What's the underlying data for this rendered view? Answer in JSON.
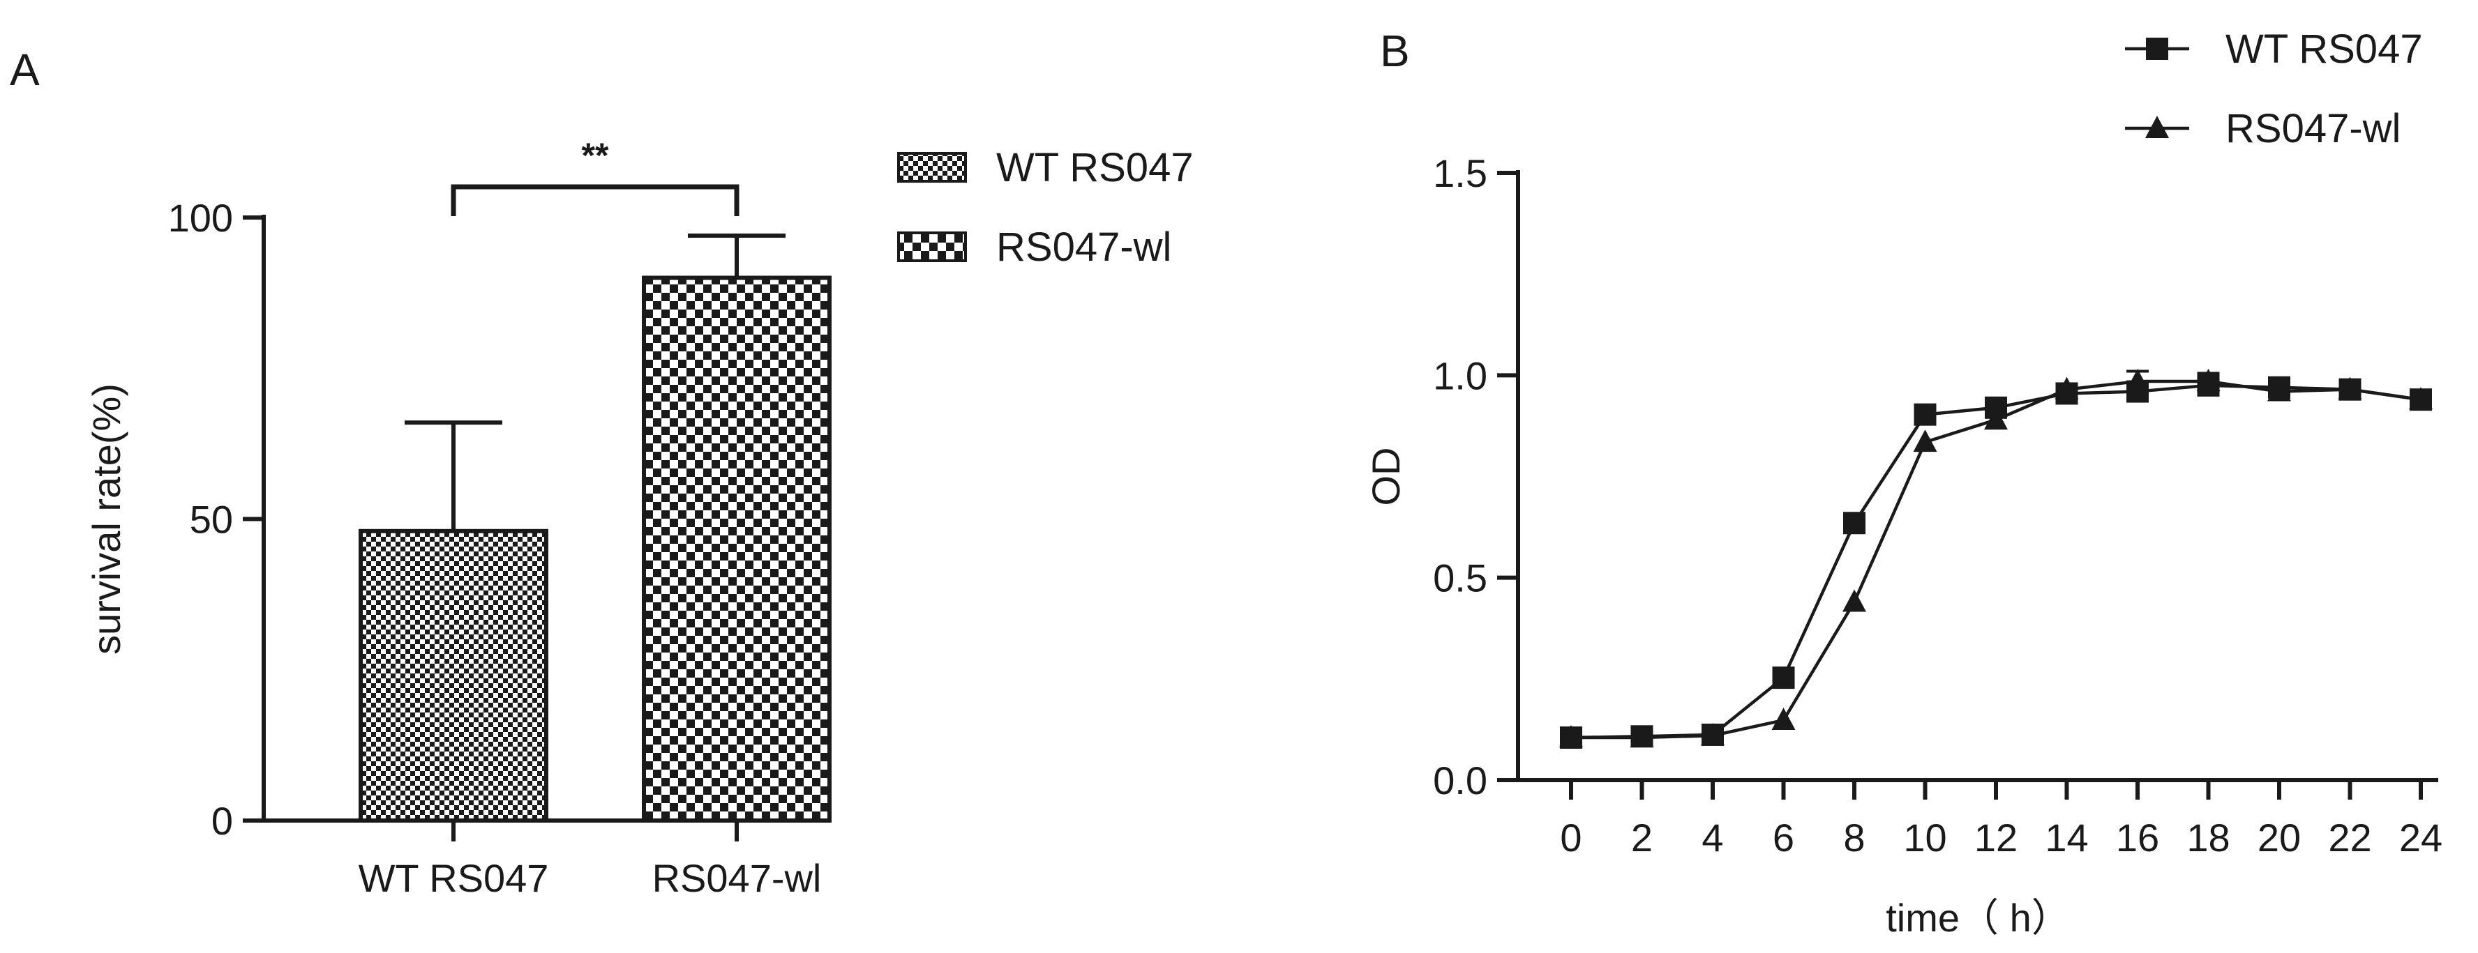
{
  "panels": {
    "a_label": "A",
    "b_label": "B"
  },
  "colors": {
    "ink": "#1a1a1a",
    "white": "#ffffff"
  },
  "chart_data": [
    {
      "type": "bar",
      "panel": "A",
      "categories": [
        "WT RS047",
        "RS047-wl"
      ],
      "values": [
        48,
        90
      ],
      "errors": [
        18,
        7
      ],
      "ylabel": "survival rate(%)",
      "xlabel": "",
      "ylim": [
        0,
        100
      ],
      "yticks": [
        0,
        50,
        100
      ],
      "ytick_labels": [
        "0",
        "50",
        "100"
      ],
      "legend": [
        {
          "name": "WT RS047",
          "pattern": "fine-checker"
        },
        {
          "name": "RS047-wl",
          "pattern": "coarse-checker"
        }
      ],
      "legend_position": "top-right",
      "significance": {
        "between": [
          0,
          1
        ],
        "label": "**"
      },
      "grid": false
    },
    {
      "type": "line",
      "panel": "B",
      "x": [
        0,
        2,
        4,
        6,
        8,
        10,
        12,
        14,
        16,
        18,
        20,
        22,
        24
      ],
      "series": [
        {
          "name": "WT RS047",
          "marker": "square",
          "values": [
            0.105,
            0.108,
            0.112,
            0.253,
            0.635,
            0.903,
            0.92,
            0.955,
            0.96,
            0.975,
            0.97,
            0.965,
            0.94
          ],
          "errors": [
            0,
            0,
            0,
            0,
            0,
            0,
            0,
            0,
            0,
            0.015,
            0,
            0,
            0
          ]
        },
        {
          "name": "RS047-wl",
          "marker": "triangle",
          "values": [
            0.105,
            0.105,
            0.11,
            0.148,
            0.44,
            0.835,
            0.89,
            0.965,
            0.985,
            0.985,
            0.96,
            0.965,
            0.94
          ],
          "errors": [
            0,
            0,
            0,
            0,
            0,
            0,
            0,
            0,
            0.025,
            0.02,
            0.02,
            0,
            0
          ]
        }
      ],
      "xlabel": "time（ h）",
      "ylabel": "OD",
      "xlim": [
        0,
        24
      ],
      "ylim": [
        0,
        1.5
      ],
      "yticks": [
        0,
        0.5,
        1.0,
        1.5
      ],
      "ytick_labels": [
        "0.0",
        "0.5",
        "1.0",
        "1.5"
      ],
      "xtick_labels": [
        "0",
        "2",
        "4",
        "6",
        "8",
        "10",
        "12",
        "14",
        "16",
        "18",
        "20",
        "22",
        "24"
      ],
      "legend_position": "top-right",
      "grid": false
    }
  ]
}
